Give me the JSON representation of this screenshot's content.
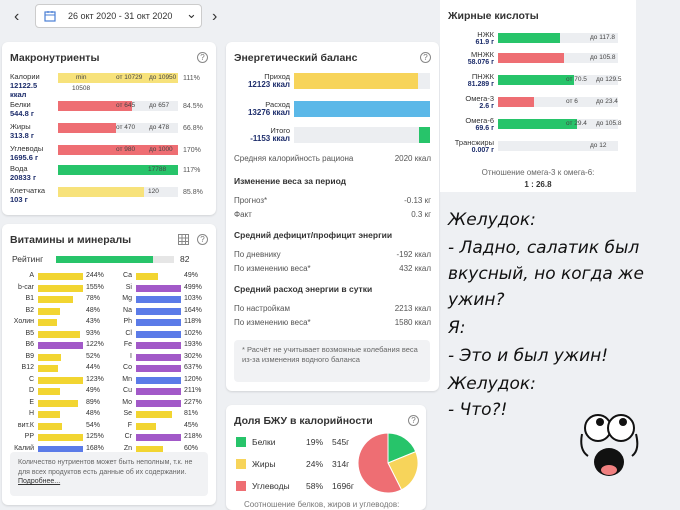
{
  "topbar": {
    "date_range": "26 окт 2020 - 31 окт 2020",
    "prev": "‹",
    "next": "›",
    "dropdown": "⌄"
  },
  "macros": {
    "title": "Макронутриенты",
    "help": "?",
    "rows": [
      {
        "name": "Калории",
        "value": "12122.5 ккал",
        "min": "min",
        "range1": "от 10729",
        "range2": "до 10950",
        "extra": "10508",
        "pct": "111%",
        "color": "#f7e27b",
        "fill": 1.0
      },
      {
        "name": "Белки",
        "value": "544.8 г",
        "range1": "от 645",
        "range2": "до 657",
        "pct": "84.5%",
        "color": "#ee6e73",
        "fill": 0.62
      },
      {
        "name": "Жиры",
        "value": "313.8 г",
        "range1": "от 470",
        "range2": "до 478",
        "pct": "66.8%",
        "color": "#ee6e73",
        "fill": 0.48
      },
      {
        "name": "Углеводы",
        "value": "1695.6 г",
        "range1": "от 980",
        "range2": "до 1000",
        "pct": "170%",
        "color": "#ee6e73",
        "fill": 1.0
      },
      {
        "name": "Вода",
        "value": "20833 г",
        "range1": "17788",
        "range2": "",
        "pct": "117%",
        "color": "#27c46a",
        "fill": 1.0
      },
      {
        "name": "Клетчатка",
        "value": "103 г",
        "range1": "120",
        "range2": "",
        "pct": "85.8%",
        "color": "#f7e27b",
        "fill": 0.72
      }
    ]
  },
  "energy": {
    "title": "Энергетический баланс",
    "help": "?",
    "bars": [
      {
        "label": "Приход",
        "value": "12123 ккал",
        "color": "#f7d45a",
        "fill": 0.91
      },
      {
        "label": "Расход",
        "value": "13276 ккал",
        "color": "#5bb8e8",
        "fill": 1.0
      },
      {
        "label": "Итого",
        "value": "-1153 ккал",
        "color": "#27c46a",
        "fill": 0.08
      }
    ],
    "avg_label": "Средняя калорийность рациона",
    "avg_value": "2020 ккал",
    "weight_title": "Изменение веса за период",
    "forecast_label": "Прогноз*",
    "forecast_value": "-0.13 кг",
    "fact_label": "Факт",
    "fact_value": "0.3 кг",
    "deficit_title": "Средний дефицит/профицит энергии",
    "diary_label": "По дневнику",
    "diary_value": "-192 ккал",
    "weightchg_label": "По изменению веса*",
    "weightchg_value": "432 ккал",
    "spend_title": "Средний расход энергии в сутки",
    "settings_label": "По настройкам",
    "settings_value": "2213 ккал",
    "weightchg2_label": "По изменению веса*",
    "weightchg2_value": "1580 ккал",
    "note": "* Расчёт не учитывает возможные колебания веса из-за изменения водного баланса"
  },
  "fats": {
    "title": "Жирные кислоты",
    "rows": [
      {
        "name": "НЖК",
        "value": "61.9 г",
        "tick": "до 117.8",
        "color": "#27c46a",
        "fill": 0.52
      },
      {
        "name": "МНЖК",
        "value": "58.076 г",
        "tick": "до 105.8",
        "color": "#ee6e73",
        "fill": 0.55
      },
      {
        "name": "ПНЖК",
        "value": "81.289 г",
        "tick": "от 70.5",
        "tick2": "до 129.5",
        "color": "#27c46a",
        "fill": 0.63
      },
      {
        "name": "Омега-3",
        "value": "2.6 г",
        "tick": "от 6",
        "tick2": "до 23.4",
        "color": "#ee6e73",
        "fill": 0.3
      },
      {
        "name": "Омега-6",
        "value": "69.6 г",
        "tick": "от 29.4",
        "tick2": "до 105.8",
        "color": "#27c46a",
        "fill": 0.66
      },
      {
        "name": "Трансжиры",
        "value": "0.007 г",
        "tick": "до 12",
        "color": "#27c46a",
        "fill": 0.0
      }
    ],
    "ratio_label": "Отношение омега-3 к омега-6:",
    "ratio_value": "1 : 26.8"
  },
  "vitamins": {
    "title": "Витамины и минералы",
    "help": "?",
    "rating_label": "Рейтинг",
    "rating_value": "82",
    "rating_fill": 0.82,
    "left": [
      {
        "n": "A",
        "v": "244%",
        "c": "#f2d531",
        "f": 1.0
      },
      {
        "n": "b-car",
        "v": "155%",
        "c": "#f2d531",
        "f": 1.0
      },
      {
        "n": "B1",
        "v": "78%",
        "c": "#f2d531",
        "f": 0.78
      },
      {
        "n": "B2",
        "v": "48%",
        "c": "#f2d531",
        "f": 0.48
      },
      {
        "n": "Холин",
        "v": "43%",
        "c": "#f2d531",
        "f": 0.43
      },
      {
        "n": "B5",
        "v": "93%",
        "c": "#f2d531",
        "f": 0.93
      },
      {
        "n": "B6",
        "v": "122%",
        "c": "#a259c8",
        "f": 1.0
      },
      {
        "n": "B9",
        "v": "52%",
        "c": "#f2d531",
        "f": 0.52
      },
      {
        "n": "B12",
        "v": "44%",
        "c": "#f2d531",
        "f": 0.44
      },
      {
        "n": "C",
        "v": "123%",
        "c": "#f2d531",
        "f": 1.0
      },
      {
        "n": "D",
        "v": "49%",
        "c": "#f2d531",
        "f": 0.49
      },
      {
        "n": "E",
        "v": "89%",
        "c": "#f2d531",
        "f": 0.89
      },
      {
        "n": "H",
        "v": "48%",
        "c": "#f2d531",
        "f": 0.48
      },
      {
        "n": "вит.К",
        "v": "54%",
        "c": "#f2d531",
        "f": 0.54
      },
      {
        "n": "PP",
        "v": "125%",
        "c": "#f2d531",
        "f": 1.0
      },
      {
        "n": "Калий",
        "v": "168%",
        "c": "#5b7be8",
        "f": 1.0
      }
    ],
    "right": [
      {
        "n": "Ca",
        "v": "49%",
        "c": "#f2d531",
        "f": 0.49
      },
      {
        "n": "Si",
        "v": "499%",
        "c": "#a259c8",
        "f": 1.0
      },
      {
        "n": "Mg",
        "v": "103%",
        "c": "#5b7be8",
        "f": 1.0
      },
      {
        "n": "Na",
        "v": "164%",
        "c": "#5b7be8",
        "f": 1.0
      },
      {
        "n": "Ph",
        "v": "118%",
        "c": "#5b7be8",
        "f": 1.0
      },
      {
        "n": "Cl",
        "v": "102%",
        "c": "#5b7be8",
        "f": 1.0
      },
      {
        "n": "Fe",
        "v": "193%",
        "c": "#a259c8",
        "f": 1.0
      },
      {
        "n": "I",
        "v": "302%",
        "c": "#a259c8",
        "f": 1.0
      },
      {
        "n": "Co",
        "v": "637%",
        "c": "#a259c8",
        "f": 1.0
      },
      {
        "n": "Mn",
        "v": "120%",
        "c": "#5b7be8",
        "f": 1.0
      },
      {
        "n": "Cu",
        "v": "211%",
        "c": "#a259c8",
        "f": 1.0
      },
      {
        "n": "Mo",
        "v": "227%",
        "c": "#a259c8",
        "f": 1.0
      },
      {
        "n": "Se",
        "v": "81%",
        "c": "#f2d531",
        "f": 0.81
      },
      {
        "n": "F",
        "v": "45%",
        "c": "#f2d531",
        "f": 0.45
      },
      {
        "n": "Cr",
        "v": "218%",
        "c": "#a259c8",
        "f": 1.0
      },
      {
        "n": "Zn",
        "v": "60%",
        "c": "#f2d531",
        "f": 0.6
      }
    ],
    "note": "Количество нутриентов может быть неполным, т.к. не для всех продуктов есть данные об их содержании.",
    "note_link": "Подробнее..."
  },
  "bju": {
    "title": "Доля БЖУ в калорийности",
    "help": "?",
    "rows": [
      {
        "name": "Белки",
        "pct": "19%",
        "grams": "545г",
        "color": "#27c46a",
        "share": 19
      },
      {
        "name": "Жиры",
        "pct": "24%",
        "grams": "314г",
        "color": "#f7d45a",
        "share": 24
      },
      {
        "name": "Углеводы",
        "pct": "58%",
        "grams": "1696г",
        "color": "#ee6e73",
        "share": 58
      }
    ],
    "footer": "Соотношение белков, жиров и углеводов:"
  },
  "meme": {
    "lines": [
      "Желудок:",
      "- Ладно, салатик был",
      "вкусный, но когда же",
      "ужин?",
      "Я:",
      "- Это и был ужин!",
      "Желудок:",
      "- Что?!"
    ]
  }
}
